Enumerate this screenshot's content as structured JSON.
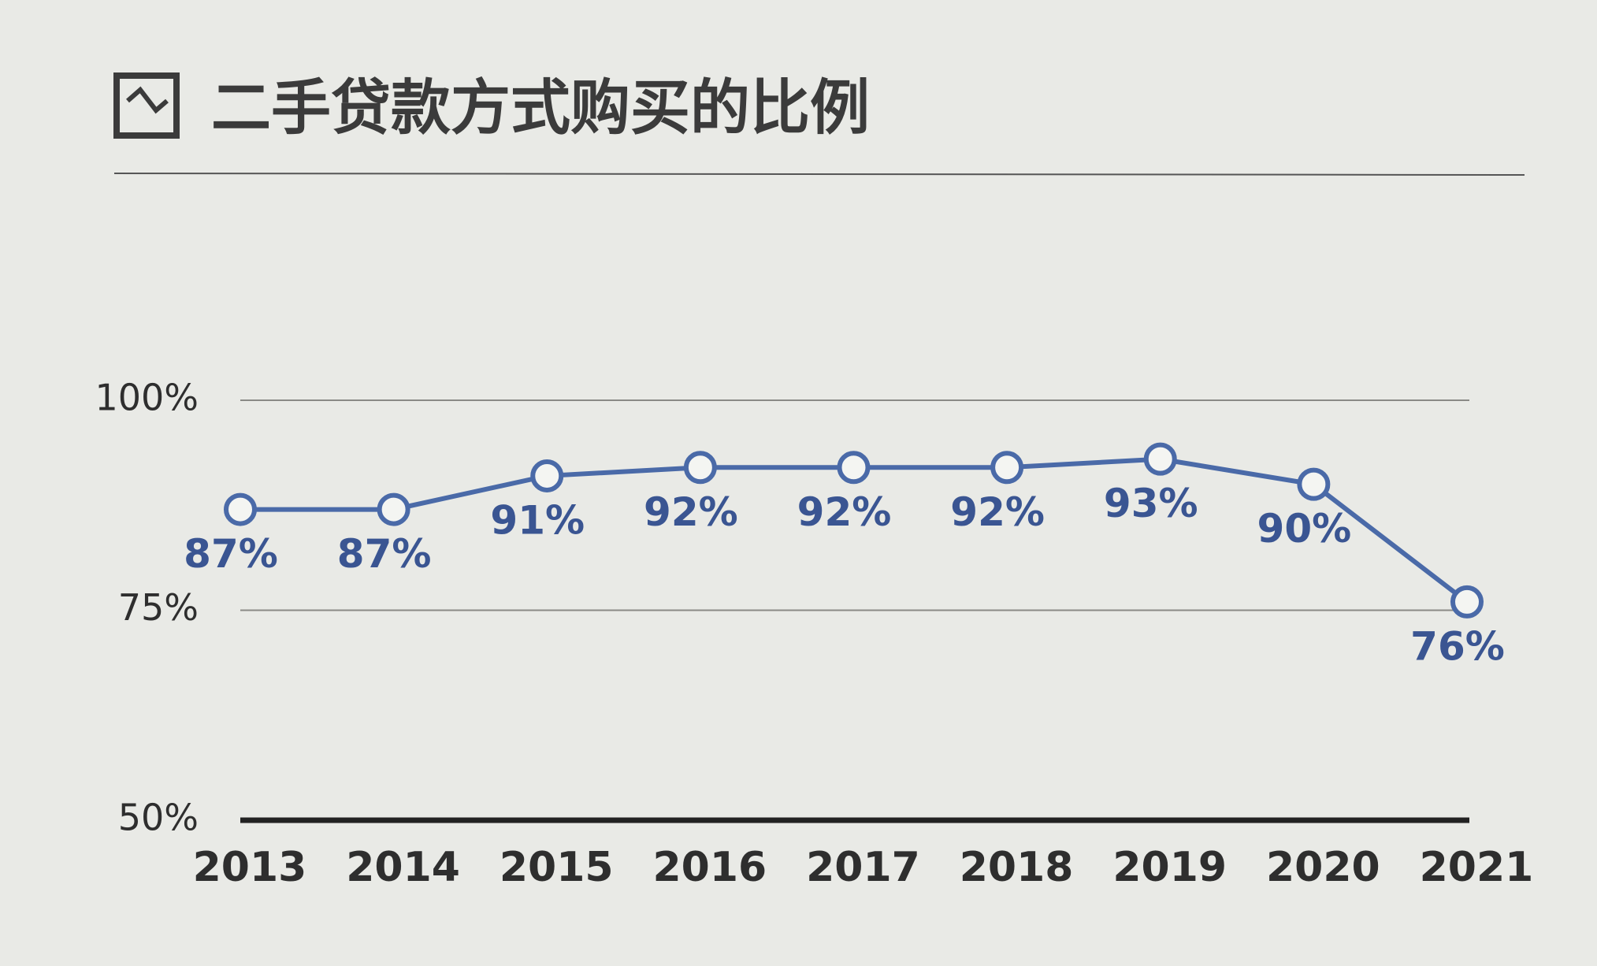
{
  "chart_data": {
    "type": "line",
    "title": "二手贷款方式购买的比例",
    "categories": [
      "2013",
      "2014",
      "2015",
      "2016",
      "2017",
      "2018",
      "2019",
      "2020",
      "2021"
    ],
    "values": [
      87,
      87,
      91,
      92,
      92,
      92,
      93,
      90,
      76
    ],
    "value_labels": [
      "87%",
      "87%",
      "91%",
      "92%",
      "92%",
      "92%",
      "93%",
      "90%",
      "76%"
    ],
    "color": "#4a6aa8",
    "ylim": [
      50,
      100
    ],
    "yticks": [
      {
        "value": 50,
        "label": "50%"
      },
      {
        "value": 75,
        "label": "75%"
      },
      {
        "value": 100,
        "label": "100%"
      }
    ],
    "grid": true
  }
}
